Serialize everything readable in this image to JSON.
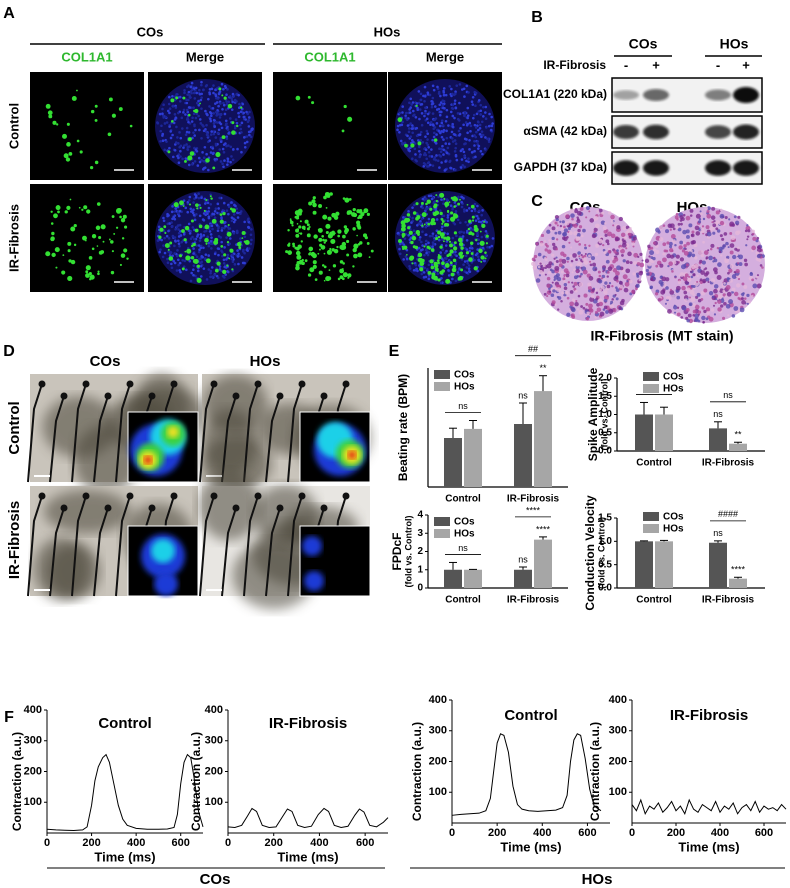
{
  "panels": {
    "A": {
      "label": "A",
      "groups": [
        "COs",
        "HOs"
      ],
      "channels": [
        "COL1A1",
        "Merge"
      ],
      "rows": [
        "Control",
        "IR-Fibrosis"
      ]
    },
    "B": {
      "label": "B",
      "groups": [
        "COs",
        "HOs"
      ],
      "treatment": "IR-Fibrosis",
      "lanes": [
        "-",
        "+",
        "-",
        "+"
      ],
      "bands": [
        "COL1A1 (220 kDa)",
        "αSMA (42 kDa)",
        "GAPDH (37 kDa)"
      ]
    },
    "C": {
      "label": "C",
      "groups": [
        "COs",
        "HOs"
      ],
      "caption": "IR-Fibrosis (MT stain)"
    },
    "D": {
      "label": "D",
      "groups": [
        "COs",
        "HOs"
      ],
      "rows": [
        "Control",
        "IR-Fibrosis"
      ]
    },
    "E": {
      "label": "E"
    },
    "F": {
      "label": "F",
      "groups": [
        "COs",
        "HOs"
      ]
    }
  },
  "chart_data": [
    {
      "type": "bar",
      "y_label": "Beating rate (BPM)",
      "categories": [
        "Control",
        "IR-Fibrosis"
      ],
      "ylim": [
        0,
        170
      ],
      "legend": "upper left",
      "series": [
        {
          "name": "COs",
          "color": "#555555",
          "values": [
            70,
            90
          ],
          "errors": [
            14,
            30
          ],
          "significance": [
            null,
            "ns"
          ]
        },
        {
          "name": "HOs",
          "color": "#a6a6a6",
          "values": [
            83,
            137
          ],
          "errors": [
            12,
            22
          ],
          "significance": [
            null,
            "**"
          ]
        }
      ],
      "comparisons": [
        "ns",
        "##"
      ]
    },
    {
      "type": "bar",
      "y_label": "Spike Amplitude",
      "y_sublabel": "(fold vs. Control)",
      "categories": [
        "Control",
        "IR-Fibrosis"
      ],
      "ylim": [
        0,
        2.0
      ],
      "yticks": [
        {
          "value": 0,
          "label": "0.0"
        },
        0.5,
        {
          "value": 1,
          "label": "1.0"
        },
        1.5,
        {
          "value": 2,
          "label": "2.0"
        }
      ],
      "legend": "upper center",
      "series": [
        {
          "name": "COs",
          "color": "#555555",
          "values": [
            1.0,
            0.62
          ],
          "errors": [
            0.33,
            0.18
          ],
          "significance": [
            null,
            "ns"
          ]
        },
        {
          "name": "HOs",
          "color": "#a6a6a6",
          "values": [
            1.0,
            0.2
          ],
          "errors": [
            0.2,
            0.04
          ],
          "significance": [
            null,
            "**"
          ]
        }
      ],
      "comparisons": [
        "ns",
        "ns"
      ]
    },
    {
      "type": "bar",
      "y_label": "FPDcF",
      "y_sublabel": "(fold vs. Control)",
      "categories": [
        "Control",
        "IR-Fibrosis"
      ],
      "ylim": [
        0,
        4
      ],
      "yticks": [
        0,
        1,
        2,
        3,
        4
      ],
      "legend": "upper left",
      "series": [
        {
          "name": "COs",
          "color": "#555555",
          "values": [
            1.0,
            1.0
          ],
          "errors": [
            0.4,
            0.15
          ],
          "significance": [
            null,
            "ns"
          ]
        },
        {
          "name": "HOs",
          "color": "#a6a6a6",
          "values": [
            1.0,
            2.65
          ],
          "errors": [
            0.02,
            0.15
          ],
          "significance": [
            null,
            "****"
          ]
        }
      ],
      "comparisons": [
        "ns",
        "****"
      ]
    },
    {
      "type": "bar",
      "y_label": "Conduction Velocity",
      "y_sublabel": "(fold vs. Control)",
      "categories": [
        "Control",
        "IR-Fibrosis"
      ],
      "ylim": [
        0,
        1.5
      ],
      "yticks": [
        {
          "value": 0,
          "label": "0.0"
        },
        0.5,
        {
          "value": 1,
          "label": "1.0"
        },
        1.5
      ],
      "legend": "upper center",
      "series": [
        {
          "name": "COs",
          "color": "#555555",
          "values": [
            1.0,
            0.97
          ],
          "errors": [
            0.01,
            0.04
          ],
          "significance": [
            null,
            "ns"
          ]
        },
        {
          "name": "HOs",
          "color": "#a6a6a6",
          "values": [
            1.0,
            0.2
          ],
          "errors": [
            0.02,
            0.03
          ],
          "significance": [
            null,
            "****"
          ]
        }
      ],
      "comparisons": [
        null,
        "####"
      ]
    },
    {
      "type": "line",
      "title": "Control",
      "x_label": "Time (ms)",
      "y_label": "Contraction (a.u.)",
      "color": "#000000",
      "x": [
        0,
        40,
        80,
        120,
        160,
        180,
        200,
        215,
        230,
        250,
        265,
        280,
        300,
        320,
        340,
        360,
        400,
        450,
        500,
        540,
        570,
        585,
        600,
        615,
        630,
        645,
        660,
        680,
        700
      ],
      "values": [
        12,
        10,
        9,
        8,
        10,
        20,
        90,
        170,
        215,
        245,
        255,
        230,
        160,
        90,
        45,
        25,
        15,
        12,
        12,
        13,
        18,
        60,
        160,
        230,
        255,
        245,
        180,
        70,
        20
      ],
      "xlim": [
        0,
        700
      ],
      "ylim": [
        0,
        400
      ],
      "xticks": [
        0,
        200,
        400,
        600
      ],
      "yticks": [
        100,
        200,
        300,
        400
      ]
    },
    {
      "type": "line",
      "title": "IR-Fibrosis",
      "x_label": "Time (ms)",
      "y_label": "Contraction (a.u.)",
      "color": "#000000",
      "x": [
        0,
        30,
        60,
        85,
        105,
        125,
        150,
        180,
        210,
        240,
        260,
        280,
        305,
        335,
        365,
        395,
        420,
        440,
        465,
        495,
        525,
        555,
        575,
        595,
        620,
        650,
        680,
        700
      ],
      "values": [
        20,
        18,
        25,
        55,
        80,
        70,
        25,
        18,
        20,
        55,
        78,
        70,
        25,
        18,
        22,
        60,
        80,
        70,
        25,
        18,
        22,
        58,
        78,
        68,
        25,
        20,
        35,
        50
      ],
      "xlim": [
        0,
        700
      ],
      "ylim": [
        0,
        400
      ],
      "xticks": [
        0,
        200,
        400,
        600
      ],
      "yticks": [
        100,
        200,
        300,
        400
      ]
    },
    {
      "type": "line",
      "title": "Control",
      "x_label": "Time (ms)",
      "y_label": "Contraction (a.u.)",
      "color": "#000000",
      "x": [
        0,
        40,
        80,
        120,
        150,
        170,
        185,
        200,
        215,
        230,
        250,
        270,
        290,
        310,
        340,
        380,
        420,
        460,
        490,
        510,
        525,
        540,
        555,
        570,
        590,
        610,
        630,
        660
      ],
      "values": [
        25,
        28,
        30,
        32,
        40,
        80,
        170,
        260,
        290,
        285,
        230,
        120,
        60,
        45,
        40,
        38,
        40,
        42,
        50,
        90,
        200,
        270,
        290,
        285,
        210,
        110,
        55,
        40
      ],
      "xlim": [
        0,
        700
      ],
      "ylim": [
        0,
        400
      ],
      "xticks": [
        0,
        200,
        400,
        600
      ],
      "yticks": [
        100,
        200,
        300,
        400
      ]
    },
    {
      "type": "line",
      "title": "IR-Fibrosis",
      "x_label": "Time (ms)",
      "y_label": "Contraction (a.u.)",
      "color": "#000000",
      "x": [
        0,
        20,
        40,
        60,
        80,
        100,
        120,
        140,
        160,
        180,
        200,
        220,
        240,
        260,
        280,
        300,
        320,
        340,
        360,
        380,
        400,
        420,
        440,
        460,
        480,
        500,
        520,
        540,
        560,
        580,
        600,
        620,
        640,
        660,
        680,
        700
      ],
      "values": [
        60,
        40,
        75,
        30,
        55,
        45,
        65,
        35,
        50,
        70,
        40,
        55,
        30,
        75,
        45,
        35,
        60,
        50,
        40,
        70,
        35,
        55,
        45,
        65,
        30,
        50,
        60,
        40,
        70,
        35,
        55,
        45,
        50,
        40,
        60,
        45
      ],
      "xlim": [
        0,
        700
      ],
      "ylim": [
        0,
        400
      ],
      "xticks": [
        0,
        200,
        400,
        600
      ],
      "yticks": [
        100,
        200,
        300,
        400
      ]
    }
  ]
}
